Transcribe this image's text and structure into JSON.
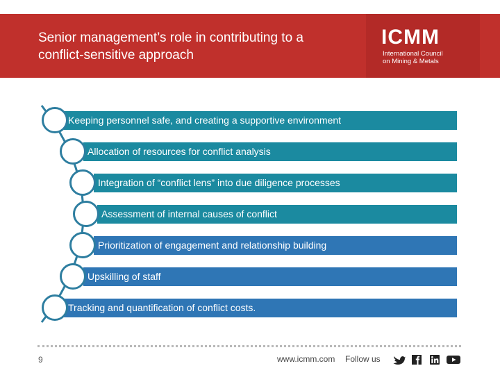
{
  "header": {
    "title": "Senior management’s role in contributing to a conflict-sensitive approach",
    "logo": {
      "name": "ICMM",
      "subtitle_line1": "International Council",
      "subtitle_line2": "on Mining & Metals"
    }
  },
  "list": {
    "items": [
      {
        "label": "Keeping personnel safe, and creating a supportive environment"
      },
      {
        "label": "Allocation of resources for conflict analysis"
      },
      {
        "label": "Integration of “conflict lens” into due diligence processes"
      },
      {
        "label": "Assessment of internal causes of conflict"
      },
      {
        "label": "Prioritization of engagement and relationship building"
      },
      {
        "label": "Upskilling of staff"
      },
      {
        "label": "Tracking and quantification of conflict costs."
      }
    ]
  },
  "footer": {
    "page_number": "9",
    "url": "www.icmm.com",
    "follow_label": "Follow us",
    "social_icons": [
      "twitter-icon",
      "facebook-icon",
      "linkedin-icon",
      "youtube-icon"
    ]
  },
  "colors": {
    "header_red": "#c0302c",
    "logo_red": "#b32a27",
    "teal": "#1b8aa0",
    "blue": "#2f76b5"
  }
}
